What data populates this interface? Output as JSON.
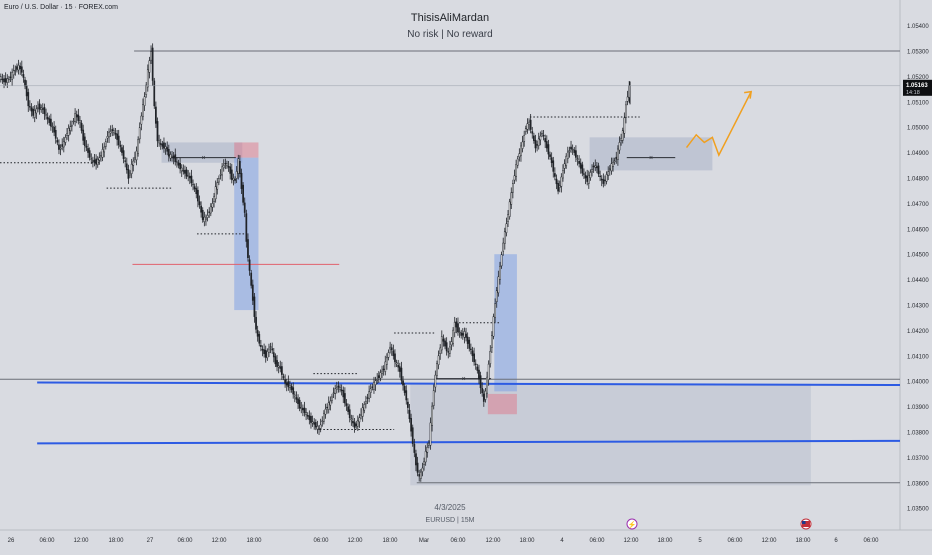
{
  "header": {
    "symbol": "Euro / U.S. Dollar · 15 · FOREX.com",
    "author": "ThisisAliMardan",
    "tagline": "No risk | No reward"
  },
  "watermark": {
    "date": "4/3/2025",
    "pair": "EURUSD | 15M"
  },
  "price_tag": {
    "price": "1.05163",
    "countdown": "14:18"
  },
  "chart_data": {
    "type": "candlestick",
    "title": "",
    "y_ticks": [
      1.053,
      1.052,
      1.051,
      1.05,
      1.049,
      1.048,
      1.047,
      1.046,
      1.045,
      1.044,
      1.043,
      1.042,
      1.041,
      1.04,
      1.039,
      1.038,
      1.037,
      1.036,
      1.035,
      1.054
    ],
    "y_tick_labels": [
      "1.05300",
      "1.05200",
      "1.05100",
      "1.05000",
      "1.04900",
      "1.04800",
      "1.04700",
      "1.04600",
      "1.04500",
      "1.04400",
      "1.04300",
      "1.04200",
      "1.04100",
      "1.04000",
      "1.03900",
      "1.03800",
      "1.03700",
      "1.03600",
      "1.03500",
      "1.05400"
    ],
    "x_tick_labels": [
      "26",
      "06:00",
      "12:00",
      "18:00",
      "27",
      "06:00",
      "12:00",
      "18:00",
      "06:00",
      "12:00",
      "18:00",
      "Mar",
      "06:00",
      "12:00",
      "18:00",
      "4",
      "06:00",
      "12:00",
      "18:00",
      "5",
      "06:00",
      "12:00",
      "18:00",
      "6",
      "06:00"
    ],
    "last_price": 1.05163,
    "price_path": [
      [
        0,
        1.052
      ],
      [
        3,
        1.0518
      ],
      [
        6,
        1.0519
      ],
      [
        9,
        1.0522
      ],
      [
        12,
        1.0524
      ],
      [
        14,
        1.0522
      ],
      [
        16,
        1.0516
      ],
      [
        18,
        1.0509
      ],
      [
        21,
        1.0505
      ],
      [
        24,
        1.0508
      ],
      [
        27,
        1.0507
      ],
      [
        30,
        1.0503
      ],
      [
        33,
        1.05
      ],
      [
        35,
        1.0496
      ],
      [
        37,
        1.0491
      ],
      [
        40,
        1.0494
      ],
      [
        42,
        1.0498
      ],
      [
        45,
        1.0501
      ],
      [
        47,
        1.0505
      ],
      [
        50,
        1.0502
      ],
      [
        52,
        1.0495
      ],
      [
        55,
        1.049
      ],
      [
        57,
        1.0487
      ],
      [
        60,
        1.0486
      ],
      [
        62,
        1.0488
      ],
      [
        65,
        1.0492
      ],
      [
        67,
        1.0497
      ],
      [
        70,
        1.0499
      ],
      [
        72,
        1.0497
      ],
      [
        75,
        1.0492
      ],
      [
        78,
        1.0486
      ],
      [
        80,
        1.048
      ],
      [
        82,
        1.0485
      ],
      [
        85,
        1.049
      ],
      [
        88,
        1.0505
      ],
      [
        90,
        1.0512
      ],
      [
        92,
        1.0522
      ],
      [
        94,
        1.053
      ],
      [
        96,
        1.0508
      ],
      [
        98,
        1.0495
      ],
      [
        100,
        1.0493
      ],
      [
        103,
        1.0492
      ],
      [
        105,
        1.0489
      ],
      [
        108,
        1.0488
      ],
      [
        110,
        1.0486
      ],
      [
        112,
        1.0484
      ],
      [
        115,
        1.0482
      ],
      [
        118,
        1.048
      ],
      [
        120,
        1.0477
      ],
      [
        122,
        1.0474
      ],
      [
        124,
        1.0469
      ],
      [
        126,
        1.0464
      ],
      [
        128,
        1.0464
      ],
      [
        130,
        1.0467
      ],
      [
        132,
        1.047
      ],
      [
        134,
        1.0476
      ],
      [
        136,
        1.048
      ],
      [
        138,
        1.0484
      ],
      [
        140,
        1.0486
      ],
      [
        142,
        1.0484
      ],
      [
        144,
        1.048
      ],
      [
        146,
        1.0479
      ],
      [
        148,
        1.0487
      ],
      [
        150,
        1.0476
      ],
      [
        152,
        1.0466
      ],
      [
        153,
        1.0455
      ],
      [
        155,
        1.0443
      ],
      [
        157,
        1.0432
      ],
      [
        159,
        1.042
      ],
      [
        162,
        1.0413
      ],
      [
        165,
        1.041
      ],
      [
        168,
        1.0414
      ],
      [
        171,
        1.0407
      ],
      [
        174,
        1.0405
      ],
      [
        177,
        1.0399
      ],
      [
        180,
        1.0398
      ],
      [
        183,
        1.0394
      ],
      [
        186,
        1.039
      ],
      [
        189,
        1.0388
      ],
      [
        192,
        1.0385
      ],
      [
        195,
        1.0383
      ],
      [
        198,
        1.0381
      ],
      [
        200,
        1.0385
      ],
      [
        202,
        1.0389
      ],
      [
        205,
        1.0392
      ],
      [
        207,
        1.0396
      ],
      [
        210,
        1.0398
      ],
      [
        212,
        1.0396
      ],
      [
        215,
        1.039
      ],
      [
        217,
        1.0386
      ],
      [
        220,
        1.0382
      ],
      [
        222,
        1.0384
      ],
      [
        225,
        1.0389
      ],
      [
        228,
        1.0394
      ],
      [
        230,
        1.0397
      ],
      [
        232,
        1.0399
      ],
      [
        235,
        1.0402
      ],
      [
        238,
        1.0405
      ],
      [
        240,
        1.0409
      ],
      [
        242,
        1.0414
      ],
      [
        245,
        1.0408
      ],
      [
        248,
        1.0404
      ],
      [
        250,
        1.0398
      ],
      [
        252,
        1.0393
      ],
      [
        254,
        1.0385
      ],
      [
        256,
        1.0376
      ],
      [
        258,
        1.0367
      ],
      [
        260,
        1.0362
      ],
      [
        262,
        1.0366
      ],
      [
        264,
        1.0372
      ],
      [
        266,
        1.0376
      ],
      [
        268,
        1.039
      ],
      [
        270,
        1.0403
      ],
      [
        272,
        1.041
      ],
      [
        274,
        1.0417
      ],
      [
        276,
        1.0414
      ],
      [
        278,
        1.0411
      ],
      [
        280,
        1.0416
      ],
      [
        282,
        1.0423
      ],
      [
        284,
        1.042
      ],
      [
        286,
        1.0418
      ],
      [
        288,
        1.0419
      ],
      [
        290,
        1.0415
      ],
      [
        292,
        1.0412
      ],
      [
        294,
        1.0408
      ],
      [
        296,
        1.0404
      ],
      [
        298,
        1.0398
      ],
      [
        300,
        1.0392
      ],
      [
        302,
        1.0401
      ],
      [
        304,
        1.0412
      ],
      [
        306,
        1.0425
      ],
      [
        308,
        1.0436
      ],
      [
        310,
        1.0445
      ],
      [
        312,
        1.0455
      ],
      [
        314,
        1.0462
      ],
      [
        316,
        1.047
      ],
      [
        318,
        1.0478
      ],
      [
        320,
        1.0485
      ],
      [
        322,
        1.049
      ],
      [
        324,
        1.0494
      ],
      [
        326,
        1.05
      ],
      [
        328,
        1.0502
      ],
      [
        330,
        1.0497
      ],
      [
        332,
        1.0492
      ],
      [
        334,
        1.0495
      ],
      [
        336,
        1.0498
      ],
      [
        338,
        1.0494
      ],
      [
        340,
        1.049
      ],
      [
        342,
        1.0486
      ],
      [
        344,
        1.048
      ],
      [
        346,
        1.0475
      ],
      [
        348,
        1.048
      ],
      [
        350,
        1.0486
      ],
      [
        352,
        1.049
      ],
      [
        354,
        1.0492
      ],
      [
        356,
        1.049
      ],
      [
        358,
        1.0487
      ],
      [
        360,
        1.0484
      ],
      [
        362,
        1.0481
      ],
      [
        364,
        1.0479
      ],
      [
        366,
        1.0482
      ],
      [
        368,
        1.0485
      ],
      [
        370,
        1.0484
      ],
      [
        372,
        1.048
      ],
      [
        374,
        1.0478
      ],
      [
        376,
        1.0481
      ],
      [
        378,
        1.0484
      ],
      [
        380,
        1.0486
      ],
      [
        382,
        1.0488
      ],
      [
        384,
        1.0494
      ],
      [
        386,
        1.0498
      ],
      [
        388,
        1.0509
      ],
      [
        390,
        1.0516
      ]
    ],
    "levels": [
      {
        "price": 1.053,
        "style": "solid",
        "color": "#6a6e77"
      },
      {
        "price": 1.04,
        "style": "solid",
        "color": "#6a6e77"
      },
      {
        "price": 1.036,
        "style": "solid",
        "color": "#6a6e77"
      },
      {
        "price": 1.0399,
        "style": "trendline",
        "color": "#2d5be3"
      },
      {
        "price": 1.0376,
        "style": "trendline",
        "color": "#2d5be3"
      },
      {
        "price": 1.0446,
        "style": "solid",
        "color": "#e0606c"
      }
    ],
    "projection": {
      "color": "#f0a020"
    }
  }
}
